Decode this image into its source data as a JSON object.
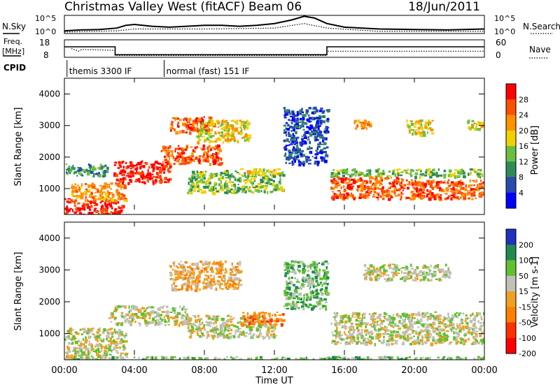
{
  "header": {
    "station": "Christmas Valley West (fitACF)",
    "beam": "Beam 06",
    "date": "18/Jun/2011"
  },
  "panels": {
    "nsky": {
      "left_label": "N.Sky",
      "right_label": "N.Search",
      "y_tick_top": "10^5",
      "y_tick_bottom": "10^0"
    },
    "freq": {
      "left_label_1": "Freq.",
      "left_label_2": "[MHz]",
      "right_label": "Nave",
      "left_ticks": [
        "18",
        "8"
      ],
      "right_ticks": [
        "60",
        "0"
      ]
    },
    "cpid": {
      "label": "CPID",
      "modes": [
        "themis 3300 IF",
        "normal (fast) 151 IF"
      ]
    }
  },
  "x_axis": {
    "label": "Time UT",
    "ticks": [
      "00:00",
      "04:00",
      "08:00",
      "12:00",
      "16:00",
      "20:00",
      "00:00"
    ]
  },
  "power_panel": {
    "ylabel": "Slant Range [km]",
    "yticks": [
      "1000",
      "2000",
      "3000",
      "4000"
    ],
    "colorbar_label": "Power [dB]",
    "colorbar_ticks": [
      "4",
      "8",
      "12",
      "16",
      "20",
      "24",
      "28"
    ],
    "colors": [
      "#0000ff",
      "#2a4ab0",
      "#2e8b57",
      "#6abf40",
      "#f0d000",
      "#ff9000",
      "#ff5000",
      "#ff0000"
    ]
  },
  "velocity_panel": {
    "ylabel": "Slant Range [km]",
    "yticks": [
      "1000",
      "2000",
      "3000",
      "4000"
    ],
    "colorbar_label": "Velocity [m s-1]",
    "colorbar_ticks": [
      "200",
      "100",
      "50",
      "15",
      "-15",
      "-50",
      "-100",
      "-200"
    ],
    "colors": [
      "#2030c0",
      "#1f8a50",
      "#60c030",
      "#c0c0b8",
      "#f0a020",
      "#ff8000",
      "#ff3000",
      "#ff0000"
    ]
  },
  "chart_data": {
    "type": "heatmap",
    "x_unit": "hours UT",
    "xlim": [
      0,
      24
    ],
    "ylim_km": [
      180,
      4500
    ],
    "nsky_trace": [
      [
        0,
        0.15
      ],
      [
        1,
        0.2
      ],
      [
        2,
        0.22
      ],
      [
        3,
        0.3
      ],
      [
        3.5,
        0.45
      ],
      [
        4,
        0.5
      ],
      [
        5,
        0.4
      ],
      [
        6,
        0.35
      ],
      [
        7,
        0.4
      ],
      [
        8,
        0.45
      ],
      [
        9,
        0.45
      ],
      [
        10,
        0.4
      ],
      [
        11,
        0.45
      ],
      [
        12,
        0.55
      ],
      [
        13,
        0.75
      ],
      [
        13.7,
        0.95
      ],
      [
        14.3,
        0.85
      ],
      [
        15,
        0.55
      ],
      [
        16,
        0.35
      ],
      [
        18,
        0.25
      ],
      [
        20,
        0.22
      ],
      [
        22,
        0.2
      ],
      [
        24,
        0.25
      ]
    ],
    "nsearch_trace": [
      [
        0,
        0.08
      ],
      [
        3,
        0.15
      ],
      [
        4,
        0.25
      ],
      [
        8,
        0.25
      ],
      [
        12,
        0.3
      ],
      [
        13.7,
        0.55
      ],
      [
        15,
        0.3
      ],
      [
        18,
        0.12
      ],
      [
        24,
        0.12
      ]
    ],
    "freq_trace": [
      [
        0,
        0.6
      ],
      [
        2.9,
        0.6
      ],
      [
        2.9,
        0.15
      ],
      [
        15,
        0.15
      ],
      [
        15,
        0.6
      ],
      [
        24,
        0.6
      ]
    ],
    "nave_trace": [
      [
        0.4,
        0.5
      ],
      [
        0.8,
        0.35
      ],
      [
        1,
        0.45
      ],
      [
        2.9,
        0.4
      ],
      [
        2.9,
        0.1
      ],
      [
        15,
        0.1
      ],
      [
        15,
        0.35
      ],
      [
        24,
        0.35
      ]
    ],
    "cpid_change_hours": [
      0.15,
      5.7
    ],
    "power_regions": [
      {
        "t0": 0,
        "t1": 3.3,
        "r0": 200,
        "r1": 700,
        "level": 7
      },
      {
        "t0": 0.3,
        "t1": 3.5,
        "r0": 650,
        "r1": 1200,
        "level": 5
      },
      {
        "t0": 2.8,
        "t1": 6,
        "r0": 1200,
        "r1": 1900,
        "level": 7
      },
      {
        "t0": 5.5,
        "t1": 9,
        "r0": 1800,
        "r1": 2400,
        "level": 6
      },
      {
        "t0": 6,
        "t1": 8.5,
        "r0": 2800,
        "r1": 3300,
        "level": 6
      },
      {
        "t0": 7.5,
        "t1": 10.5,
        "r0": 2500,
        "r1": 3200,
        "level": 4
      },
      {
        "t0": 7,
        "t1": 12.5,
        "r0": 900,
        "r1": 1600,
        "level": 3
      },
      {
        "t0": 10,
        "t1": 12.5,
        "r0": 1450,
        "r1": 1650,
        "level": 4
      },
      {
        "t0": 0,
        "t1": 2.5,
        "r0": 1400,
        "r1": 1800,
        "level": 2
      },
      {
        "t0": 15.2,
        "t1": 23.8,
        "r0": 1400,
        "r1": 1650,
        "level": 3
      },
      {
        "t0": 15.2,
        "t1": 20.5,
        "r0": 700,
        "r1": 1400,
        "level": 6
      },
      {
        "t0": 20,
        "t1": 24,
        "r0": 700,
        "r1": 1300,
        "level": 6
      },
      {
        "t0": 16.5,
        "t1": 17.5,
        "r0": 2900,
        "r1": 3200,
        "level": 5
      },
      {
        "t0": 19.5,
        "t1": 21,
        "r0": 2700,
        "r1": 3200,
        "level": 4
      },
      {
        "t0": 23,
        "t1": 24,
        "r0": 2900,
        "r1": 3200,
        "level": 4
      },
      {
        "t0": 12.5,
        "t1": 15,
        "r0": 1800,
        "r1": 3600,
        "level": 1
      }
    ],
    "velocity_regions": [
      {
        "t0": 0,
        "t1": 3.5,
        "r0": 200,
        "r1": 1200,
        "level": 3
      },
      {
        "t0": 2.5,
        "t1": 7,
        "r0": 1300,
        "r1": 1900,
        "level": 3
      },
      {
        "t0": 6,
        "t1": 10,
        "r0": 2400,
        "r1": 3300,
        "level": 4
      },
      {
        "t0": 7,
        "t1": 12,
        "r0": 900,
        "r1": 1600,
        "level": 3
      },
      {
        "t0": 10,
        "t1": 12.5,
        "r0": 1300,
        "r1": 1700,
        "level": 5
      },
      {
        "t0": 15.2,
        "t1": 24,
        "r0": 700,
        "r1": 1700,
        "level": 3
      },
      {
        "t0": 17,
        "t1": 22,
        "r0": 2700,
        "r1": 3200,
        "level": 3
      },
      {
        "t0": 0,
        "t1": 24,
        "r0": 180,
        "r1": 300,
        "level": 2
      },
      {
        "t0": 12.5,
        "t1": 15,
        "r0": 1800,
        "r1": 3300,
        "level": 2
      }
    ]
  }
}
